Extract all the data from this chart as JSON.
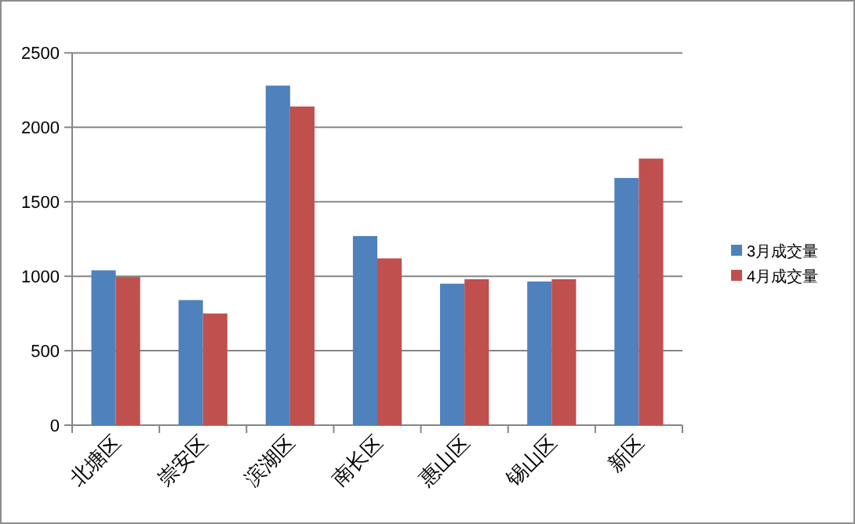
{
  "chart_data": {
    "type": "bar",
    "categories": [
      "北塘区",
      "崇安区",
      "滨湖区",
      "南长区",
      "惠山区",
      "锡山区",
      "新区"
    ],
    "series": [
      {
        "name": "3月成交量",
        "color": "#4f81bd",
        "values": [
          1040,
          840,
          2280,
          1270,
          950,
          965,
          1660
        ]
      },
      {
        "name": "4月成交量",
        "color": "#c0504d",
        "values": [
          995,
          750,
          2140,
          1120,
          980,
          980,
          1790
        ]
      }
    ],
    "ylim": [
      0,
      2500
    ],
    "yticks": [
      0,
      500,
      1000,
      1500,
      2000,
      2500
    ],
    "grid": "y",
    "legend": "right"
  }
}
